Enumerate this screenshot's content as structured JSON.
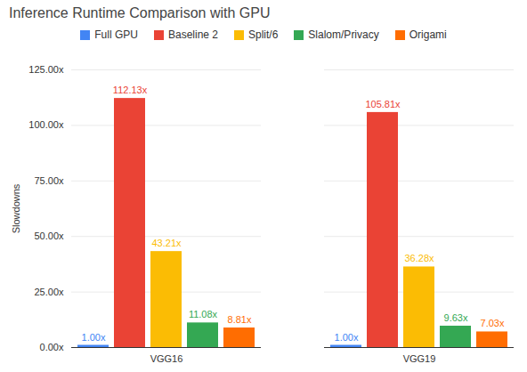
{
  "chart_data": {
    "type": "bar",
    "title": "Inference Runtime Comparison with GPU",
    "y_label": "Slowdowns",
    "categories": [
      "VGG16",
      "VGG19"
    ],
    "series": [
      {
        "name": "Full GPU",
        "color": "#4285f4",
        "values": [
          1.0,
          1.0
        ],
        "value_labels": [
          "1.00x",
          "1.00x"
        ]
      },
      {
        "name": "Baseline 2",
        "color": "#ea4335",
        "values": [
          112.13,
          105.81
        ],
        "value_labels": [
          "112.13x",
          "105.81x"
        ]
      },
      {
        "name": "Split/6",
        "color": "#fbbc04",
        "values": [
          43.21,
          36.28
        ],
        "value_labels": [
          "43.21x",
          "36.28x"
        ]
      },
      {
        "name": "Slalom/Privacy",
        "color": "#34a853",
        "values": [
          11.08,
          9.63
        ],
        "value_labels": [
          "11.08x",
          "9.63x"
        ]
      },
      {
        "name": "Origami",
        "color": "#ff6d01",
        "values": [
          8.81,
          7.03
        ],
        "value_labels": [
          "8.81x",
          "7.03x"
        ]
      }
    ],
    "ylim": [
      0,
      125
    ],
    "yticks": [
      {
        "value": 0,
        "label": "0.00x"
      },
      {
        "value": 25,
        "label": "25.00x"
      },
      {
        "value": 50,
        "label": "50.00x"
      },
      {
        "value": 75,
        "label": "75.00x"
      },
      {
        "value": 100,
        "label": "100.00x"
      },
      {
        "value": 125,
        "label": "125.00x"
      }
    ],
    "grid": true,
    "legend": "top",
    "data_labels": true
  }
}
